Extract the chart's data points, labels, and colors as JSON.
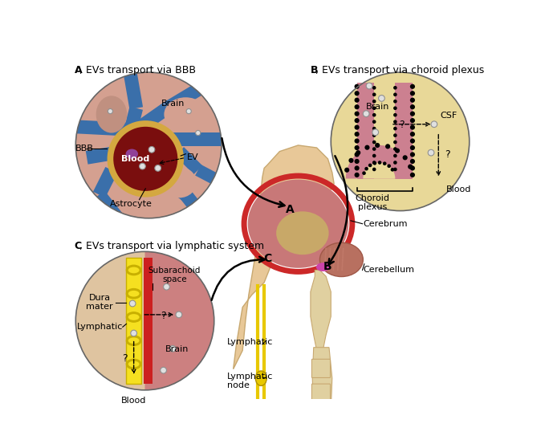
{
  "panel_A_title_bold": "A",
  "panel_A_title_rest": ", EVs transport via BBB",
  "panel_B_title_bold": "B",
  "panel_B_title_rest": ", EVs transport via choroid plexus",
  "panel_C_title_bold": "C",
  "panel_C_title_rest": ", EVs transport via lymphatic system",
  "colors": {
    "white_bg": "#ffffff",
    "panel_A_bg": "#d4a090",
    "astrocyte_blue": "#3a6faa",
    "blood_wall": "#d4a840",
    "blood_dark": "#7a0e0e",
    "nucleus_purple": "#904098",
    "ev_face": "#e0e0e0",
    "ev_edge": "#909090",
    "panel_B_bg": "#e8d898",
    "choroid_pink": "#cc8090",
    "choroid_dot": "#111111",
    "panel_C_bg_tan": "#dfc090",
    "panel_C_bg_pink": "#cc8080",
    "lymph_yellow": "#f5e020",
    "lymph_yellow_dark": "#c8b000",
    "blood_red_strip": "#cc2020",
    "head_skin": "#e8c898",
    "head_outline": "#c8a870",
    "brain_outer_red": "#cc2828",
    "brain_fill_pink": "#cc8878",
    "brain_inner_tan": "#c8a868",
    "brain_cerebellum": "#b87060",
    "brain_pink_fill": "#c87878",
    "spine_tan": "#e0d0a0",
    "lymph_vessel_yellow": "#e8c800",
    "lymph_node_yellow": "#e8c800",
    "arrow_black": "#000000",
    "magenta_bright": "#cc44aa"
  }
}
